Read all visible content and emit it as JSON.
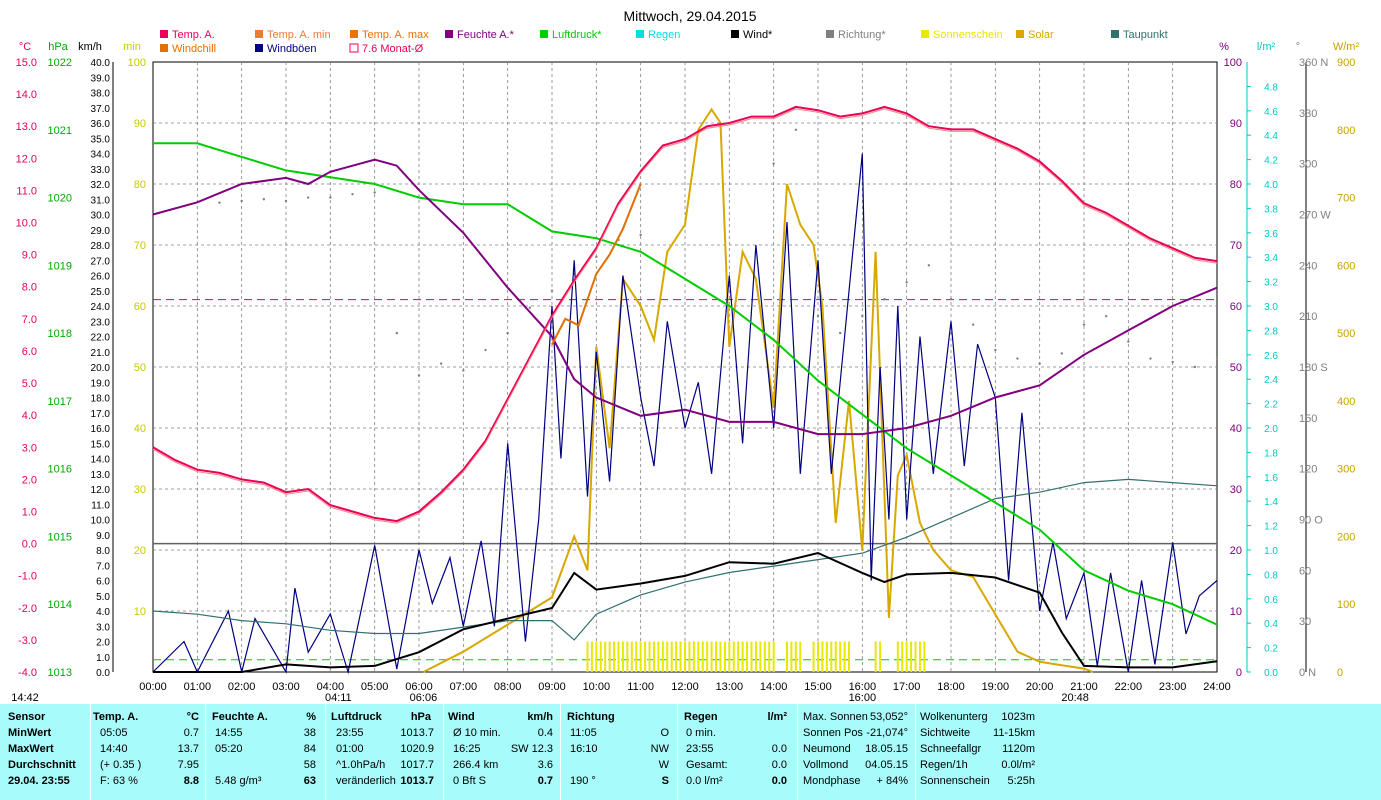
{
  "title": "Mittwoch, 29.04.2015",
  "legend": [
    {
      "label": "Temp. A.",
      "color": "#e8005a"
    },
    {
      "label": "Temp. A. min",
      "color": "#f07838"
    },
    {
      "label": "Temp. A. max",
      "color": "#f07000"
    },
    {
      "label": "Feuchte A.*",
      "color": "#800080"
    },
    {
      "label": "Luftdruck*",
      "color": "#00cc00"
    },
    {
      "label": "Regen",
      "color": "#00e0e0"
    },
    {
      "label": "Wind*",
      "color": "#000000"
    },
    {
      "label": "Richtung*",
      "color": "#808080"
    },
    {
      "label": "Sonnenschein",
      "color": "#e8e800"
    },
    {
      "label": "Solar",
      "color": "#d8a800"
    },
    {
      "label": "Taupunkt",
      "color": "#307070"
    },
    {
      "label": "Windchill",
      "color": "#e07000"
    },
    {
      "label": "Windböen",
      "color": "#000080"
    },
    {
      "label": "7.6 Monat-Ø",
      "color": "#e8005a"
    }
  ],
  "axis_units": {
    "temp": "°C",
    "pressure": "hPa",
    "wind": "km/h",
    "sun": "min",
    "humidity": "%",
    "rain": "l/m²",
    "direction": "°",
    "solar": "W/m²"
  },
  "colors": {
    "temp": "#e8005a",
    "pressure": "#00aa00",
    "wind_axis": "#000000",
    "sun_axis": "#c8c800",
    "humidity": "#800080",
    "rain": "#00c8c8",
    "direction": "#808080",
    "solar": "#c8a000",
    "grid": "#808080"
  },
  "chart_data": {
    "type": "line",
    "x_ticks": [
      "00:00",
      "01:00",
      "02:00",
      "03:00",
      "04:00",
      "05:00",
      "06:00",
      "07:00",
      "08:00",
      "09:00",
      "10:00",
      "11:00",
      "12:00",
      "13:00",
      "14:00",
      "15:00",
      "16:00",
      "17:00",
      "18:00",
      "19:00",
      "20:00",
      "21:00",
      "22:00",
      "23:00",
      "24:00"
    ],
    "event_labels": [
      {
        "text": "14:42",
        "hour": 0
      },
      {
        "text": "04:11",
        "hour": 4.18
      },
      {
        "text": "06:06",
        "hour": 6.1
      },
      {
        "text": "16:00",
        "hour": 16.0
      },
      {
        "text": "20:48",
        "hour": 20.8
      }
    ],
    "axes": {
      "temp": {
        "min": -4.0,
        "max": 15.0,
        "ticks": [
          "15.0",
          "14.0",
          "13.0",
          "12.0",
          "11.0",
          "10.0",
          "9.0",
          "8.0",
          "7.0",
          "6.0",
          "5.0",
          "4.0",
          "3.0",
          "2.0",
          "1.0",
          "0.0",
          "-1.0",
          "-2.0",
          "-3.0",
          "-4.0"
        ]
      },
      "pressure": {
        "min": 1013,
        "max": 1022,
        "ticks": [
          "1022",
          "1021",
          "1020",
          "1019",
          "1018",
          "1017",
          "1016",
          "1015",
          "1014",
          "1013"
        ]
      },
      "wind": {
        "min": 0,
        "max": 40,
        "ticks": [
          "40.0",
          "39.0",
          "38.0",
          "37.0",
          "36.0",
          "35.0",
          "34.0",
          "33.0",
          "32.0",
          "31.0",
          "30.0",
          "29.0",
          "28.0",
          "27.0",
          "26.0",
          "25.0",
          "24.0",
          "23.0",
          "22.0",
          "21.0",
          "20.0",
          "19.0",
          "18.0",
          "17.0",
          "16.0",
          "15.0",
          "14.0",
          "13.0",
          "12.0",
          "11.0",
          "10.0",
          "9.0",
          "8.0",
          "7.0",
          "6.0",
          "5.0",
          "4.0",
          "3.0",
          "2.0",
          "1.0",
          "0.0"
        ]
      },
      "sun": {
        "min": 0,
        "max": 100,
        "ticks": [
          "100",
          "90",
          "80",
          "70",
          "60",
          "50",
          "40",
          "30",
          "20",
          "10"
        ]
      },
      "humidity": {
        "min": 0,
        "max": 100,
        "ticks": [
          "100",
          "90",
          "80",
          "70",
          "60",
          "50",
          "40",
          "30",
          "20",
          "10",
          "0"
        ]
      },
      "rain": {
        "min": 0,
        "max": 5,
        "ticks": [
          "4.8",
          "4.6",
          "4.4",
          "4.2",
          "4.0",
          "3.8",
          "3.6",
          "3.4",
          "3.2",
          "3.0",
          "2.8",
          "2.6",
          "2.4",
          "2.2",
          "2.0",
          "1.8",
          "1.6",
          "1.4",
          "1.2",
          "1.0",
          "0.8",
          "0.6",
          "0.4",
          "0.2",
          "0.0"
        ]
      },
      "direction": {
        "min": 0,
        "max": 360,
        "ticks": [
          {
            "v": 360,
            "t": "360 N"
          },
          {
            "v": 330,
            "t": "330"
          },
          {
            "v": 300,
            "t": "300"
          },
          {
            "v": 270,
            "t": "270 W"
          },
          {
            "v": 240,
            "t": "240"
          },
          {
            "v": 210,
            "t": "210"
          },
          {
            "v": 180,
            "t": "180 S"
          },
          {
            "v": 150,
            "t": "150"
          },
          {
            "v": 120,
            "t": "120"
          },
          {
            "v": 90,
            "t": "90  O"
          },
          {
            "v": 60,
            "t": "60"
          },
          {
            "v": 30,
            "t": "30"
          },
          {
            "v": 0,
            "t": "0   N"
          }
        ]
      },
      "solar": {
        "min": 0,
        "max": 900,
        "ticks": [
          "900",
          "800",
          "700",
          "600",
          "500",
          "400",
          "300",
          "200",
          "100",
          "0"
        ]
      }
    },
    "reference_lines": [
      {
        "name": "7.6 Monat-Ø",
        "axis": "temp",
        "value": 7.6,
        "color": "#e8005a",
        "dash": true
      },
      {
        "axis": "temp",
        "value": 0.0,
        "color": "#606060",
        "dash": false
      },
      {
        "axis": "rain",
        "value": 0.1,
        "color": "#00cc00",
        "dash": true
      }
    ],
    "series": [
      {
        "name": "Temp. A.",
        "axis": "temp",
        "color": "#e8005a",
        "x": [
          0,
          0.5,
          1,
          1.5,
          2,
          2.5,
          3,
          3.5,
          4,
          4.5,
          5,
          5.5,
          6,
          6.5,
          7,
          7.5,
          8,
          8.5,
          9,
          9.5,
          10,
          10.5,
          11,
          11.5,
          12,
          12.5,
          13,
          13.5,
          14,
          14.5,
          15,
          15.5,
          16,
          16.5,
          17,
          17.5,
          18,
          18.5,
          19,
          19.5,
          20,
          20.5,
          21,
          21.5,
          22,
          22.5,
          23,
          23.5,
          24
        ],
        "y": [
          3.0,
          2.6,
          2.3,
          2.2,
          2.0,
          1.9,
          1.6,
          1.7,
          1.2,
          1.0,
          0.8,
          0.7,
          1.0,
          1.6,
          2.3,
          3.2,
          4.5,
          5.8,
          7.1,
          8.2,
          9.2,
          10.6,
          11.6,
          12.4,
          12.6,
          13.0,
          13.1,
          13.3,
          13.3,
          13.6,
          13.5,
          13.3,
          13.4,
          13.6,
          13.4,
          13.0,
          12.9,
          12.9,
          12.6,
          12.3,
          11.9,
          11.3,
          10.6,
          10.3,
          9.9,
          9.5,
          9.2,
          8.9,
          8.8
        ]
      },
      {
        "name": "Windchill",
        "axis": "temp",
        "color": "#e07000",
        "x": [
          9,
          9.3,
          9.6,
          10,
          10.3,
          10.6,
          11
        ],
        "y": [
          6.2,
          7.0,
          6.8,
          8.4,
          9.0,
          9.8,
          11.2
        ]
      },
      {
        "name": "Feuchte A.*",
        "axis": "humidity",
        "color": "#800080",
        "x": [
          0,
          1,
          2,
          3,
          3.5,
          4,
          5,
          5.5,
          6,
          7,
          8,
          9,
          9.5,
          10,
          11,
          12,
          13,
          14,
          15,
          16,
          17,
          18,
          19,
          20,
          21,
          22,
          23,
          24
        ],
        "y": [
          75,
          77,
          80,
          81,
          80,
          82,
          84,
          83,
          79,
          72,
          63,
          55,
          48,
          45,
          42,
          43,
          41,
          41,
          39,
          39,
          40,
          42,
          45,
          47,
          52,
          56,
          60,
          63
        ]
      },
      {
        "name": "Luftdruck*",
        "axis": "pressure",
        "color": "#00cc00",
        "x": [
          0,
          1,
          2,
          3,
          4,
          5,
          6,
          7,
          8,
          9,
          10,
          11,
          12,
          13,
          14,
          15,
          16,
          17,
          18,
          19,
          20,
          21,
          22,
          23,
          24
        ],
        "y": [
          1020.8,
          1020.8,
          1020.6,
          1020.4,
          1020.3,
          1020.2,
          1020.0,
          1019.9,
          1019.9,
          1019.5,
          1019.4,
          1019.2,
          1018.8,
          1018.4,
          1017.9,
          1017.3,
          1016.8,
          1016.3,
          1015.9,
          1015.5,
          1015.1,
          1014.5,
          1014.2,
          1014.0,
          1013.7
        ]
      },
      {
        "name": "Taupunkt",
        "axis": "temp",
        "color": "#307070",
        "x": [
          0,
          1,
          2,
          3,
          4,
          5,
          6,
          7,
          8,
          9,
          9.5,
          10,
          11,
          12,
          13,
          14,
          15,
          16,
          17,
          18,
          19,
          20,
          21,
          22,
          23,
          24
        ],
        "y": [
          -2.1,
          -2.2,
          -2.4,
          -2.5,
          -2.7,
          -2.8,
          -2.8,
          -2.6,
          -2.4,
          -2.4,
          -3.0,
          -2.2,
          -1.6,
          -1.2,
          -0.9,
          -0.7,
          -0.5,
          -0.3,
          0.2,
          0.8,
          1.4,
          1.6,
          1.9,
          2.0,
          1.9,
          1.8
        ]
      },
      {
        "name": "Wind*",
        "axis": "wind",
        "color": "#000000",
        "x": [
          0,
          2,
          3,
          4,
          5,
          6,
          7,
          8,
          9,
          9.5,
          10,
          11,
          12,
          13,
          14,
          15,
          16,
          16.5,
          17,
          18,
          19,
          20,
          20.5,
          21,
          22,
          23,
          24
        ],
        "y": [
          0,
          0,
          0.5,
          0.3,
          0.4,
          1.3,
          2.8,
          3.5,
          4.2,
          6.5,
          5.4,
          5.8,
          6.3,
          7.2,
          7.1,
          7.8,
          6.5,
          5.9,
          6.4,
          6.5,
          6.2,
          5.2,
          2.6,
          0.4,
          0.3,
          0.3,
          0.7
        ]
      },
      {
        "name": "Windböen",
        "axis": "wind",
        "color": "#000080",
        "x": [
          0,
          0.7,
          1,
          1.7,
          2,
          2.3,
          3,
          3.2,
          3.5,
          4,
          4.4,
          4.8,
          5,
          5.5,
          6,
          6.3,
          6.7,
          7,
          7.4,
          7.7,
          8,
          8.4,
          8.7,
          9,
          9.2,
          9.5,
          9.8,
          10,
          10.3,
          10.6,
          11,
          11.3,
          11.6,
          12,
          12.3,
          12.6,
          13,
          13.3,
          13.6,
          14,
          14.3,
          14.6,
          15,
          15.3,
          15.6,
          16,
          16.2,
          16.4,
          16.6,
          16.8,
          17,
          17.3,
          17.6,
          18,
          18.3,
          18.6,
          19,
          19.3,
          19.6,
          20,
          20.3,
          20.6,
          21,
          21.3,
          21.6,
          22,
          22.3,
          22.6,
          23,
          23.3,
          23.6,
          24
        ],
        "y": [
          0,
          2.0,
          0,
          4.0,
          0,
          3.5,
          0,
          5.5,
          1.3,
          3.8,
          0,
          5.5,
          8.3,
          0.2,
          8.0,
          4.5,
          7.5,
          3.0,
          8.6,
          3.0,
          15.0,
          2.0,
          10.0,
          24.0,
          14.0,
          27.0,
          11.5,
          21.0,
          12.5,
          26.0,
          18.0,
          13.5,
          23.0,
          16.0,
          19.0,
          13.0,
          26.0,
          15.0,
          28.0,
          16.0,
          29.5,
          13.0,
          27.0,
          13.0,
          22.0,
          34.0,
          6.0,
          20.0,
          10.0,
          24.0,
          10.0,
          22.0,
          13.0,
          23.0,
          13.5,
          21.5,
          18.0,
          6.0,
          17.0,
          4.0,
          8.5,
          3.5,
          6.5,
          0.4,
          6.5,
          0,
          6.0,
          0.5,
          8.5,
          2.5,
          5.0,
          6.0
        ]
      },
      {
        "name": "Solar",
        "axis": "solar",
        "color": "#d8a800",
        "x": [
          6.1,
          7,
          8,
          9,
          9.5,
          9.8,
          10,
          10.3,
          10.6,
          11,
          11.3,
          11.6,
          12,
          12.3,
          12.6,
          12.8,
          13,
          13.3,
          13.6,
          14,
          14.3,
          14.6,
          14.9,
          15.1,
          15.4,
          15.7,
          16,
          16.3,
          16.6,
          16.8,
          17,
          17.3,
          17.6,
          18,
          18.5,
          19,
          19.5,
          20,
          20.5,
          21,
          21.2
        ],
        "y": [
          0,
          30,
          70,
          110,
          200,
          150,
          480,
          330,
          580,
          540,
          490,
          620,
          660,
          800,
          830,
          810,
          480,
          620,
          580,
          390,
          720,
          660,
          630,
          540,
          220,
          400,
          180,
          620,
          80,
          290,
          320,
          220,
          180,
          150,
          140,
          85,
          30,
          15,
          10,
          5,
          0
        ]
      },
      {
        "name": "Richtung*",
        "axis": "direction",
        "color": "#808080",
        "x": [
          1.5,
          2,
          2.5,
          3,
          3.5,
          4,
          4.5,
          5,
          5.5,
          6,
          6.5,
          7,
          7.5,
          8,
          8.5,
          9,
          9.5,
          10,
          10.5,
          11,
          14,
          14.5,
          15,
          15.5,
          16,
          16.5,
          17,
          17.5,
          18,
          18.5,
          19,
          19.5,
          20,
          20.5,
          21,
          21.5,
          22,
          22.5,
          23,
          23.5,
          24
        ],
        "y": [
          277,
          278,
          279,
          278,
          280,
          280,
          282,
          283,
          200,
          175,
          182,
          178,
          190,
          200,
          215,
          225,
          235,
          245,
          255,
          258,
          300,
          320,
          210,
          200,
          210,
          220,
          230,
          240,
          220,
          205,
          190,
          185,
          182,
          188,
          205,
          210,
          195,
          185,
          183,
          180,
          185
        ]
      }
    ],
    "sunshine_bars": {
      "color": "#e8e800",
      "hours": [
        [
          9.8,
          14.0
        ],
        [
          14.3,
          14.6
        ],
        [
          14.9,
          15.7
        ],
        [
          16.3,
          16.4
        ],
        [
          16.8,
          16.9
        ],
        [
          17.0,
          17.4
        ]
      ],
      "value": 5
    }
  },
  "stats": {
    "headers": [
      "Sensor",
      "Temp. A.",
      "°C",
      "Feuchte A.",
      "%",
      "Luftdruck",
      "hPa",
      "Wind",
      "km/h",
      "Richtung",
      "",
      "Regen",
      "l/m²"
    ],
    "row_labels": [
      "MinWert",
      "MaxWert",
      "Durchschnitt",
      "29.04. 23:55"
    ],
    "temp": [
      [
        "05:05",
        "0.7"
      ],
      [
        "14:40",
        "13.7"
      ],
      [
        "(+ 0.35 )",
        "7.95"
      ],
      [
        "F: 63 %",
        "8.8"
      ]
    ],
    "hum": [
      [
        "14:55",
        "38"
      ],
      [
        "05:20",
        "84"
      ],
      [
        "",
        "58"
      ],
      [
        "5.48 g/m³",
        "63"
      ]
    ],
    "press": [
      [
        "23:55",
        "1013.7"
      ],
      [
        "01:00",
        "1020.9"
      ],
      [
        "^1.0hPa/h",
        "1017.7"
      ],
      [
        "veränderlich",
        "1013.7"
      ]
    ],
    "wind": [
      [
        "Ø 10 min.",
        "0.4"
      ],
      [
        "16:25",
        "SW 12.3"
      ],
      [
        "266.4 km",
        "3.6"
      ],
      [
        "0 Bft S",
        "0.7"
      ]
    ],
    "dir": [
      [
        "11:05",
        "O"
      ],
      [
        "16:10",
        "NW"
      ],
      [
        "",
        "W"
      ],
      [
        "190 °",
        "S"
      ]
    ],
    "rain": [
      [
        "0 min.",
        ""
      ],
      [
        "23:55",
        "0.0"
      ],
      [
        "Gesamt:",
        "0.0"
      ],
      [
        "0.0 l/m²",
        "0.0"
      ]
    ],
    "astro1": [
      [
        "Max. Sonnen",
        "53,052°"
      ],
      [
        "Sonnen Pos",
        "-21,074°"
      ],
      [
        "Neumond",
        "18.05.15"
      ],
      [
        "Vollmond",
        "04.05.15"
      ],
      [
        "Mondphase",
        "+ 84%"
      ]
    ],
    "astro2": [
      [
        "Wolkenunterg",
        "1023m"
      ],
      [
        "Sichtweite",
        "11-15km"
      ],
      [
        "Schneefallgr",
        "1120m"
      ],
      [
        "Regen/1h",
        "0.0l/m²"
      ],
      [
        "Sonnenschein",
        "5:25h"
      ]
    ]
  }
}
